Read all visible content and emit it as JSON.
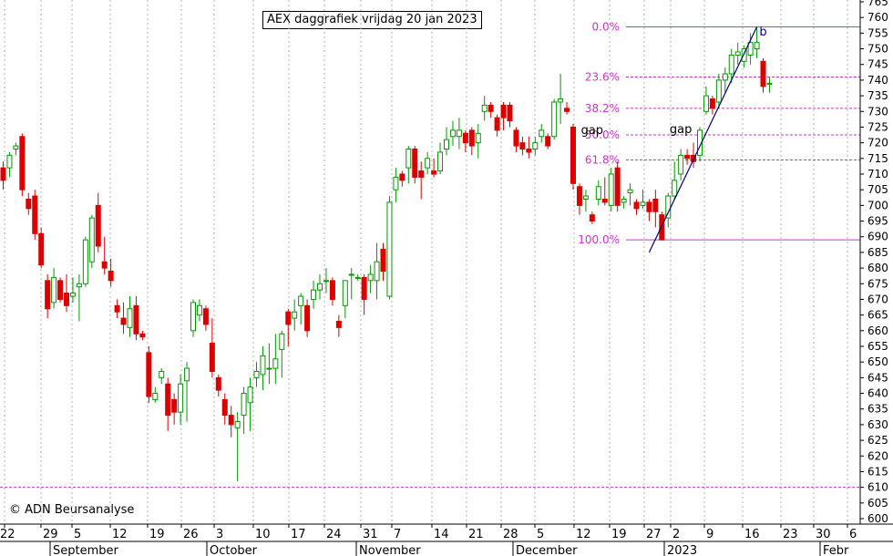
{
  "title": "AEX daggrafiek vrijdag 20 jan 2023",
  "copyright": "© ADN Beursanalyse",
  "chart_data": {
    "type": "candlestick",
    "title": "AEX daggrafiek vrijdag 20 jan 2023",
    "y_axis": {
      "min": 600,
      "max": 765,
      "step": 5,
      "position": "right"
    },
    "x_day_labels": [
      "22",
      "29",
      "5",
      "12",
      "19",
      "26",
      "3",
      "10",
      "17",
      "24",
      "31",
      "7",
      "14",
      "21",
      "28",
      "5",
      "12",
      "19",
      "27",
      "2",
      "9",
      "16",
      "23",
      "30",
      "6"
    ],
    "x_month_labels": [
      "September",
      "October",
      "November",
      "December",
      "2023",
      "Febr"
    ],
    "grid": true,
    "fib_levels": [
      {
        "label": "0.0%",
        "value": 757
      },
      {
        "label": "23.6%",
        "value": 741
      },
      {
        "label": "38.2%",
        "value": 731
      },
      {
        "label": "50.0%",
        "value": 722.5
      },
      {
        "label": "61.8%",
        "value": 714.5
      },
      {
        "label": "100.0%",
        "value": 689
      }
    ],
    "support_line": {
      "value": 610
    },
    "annotations": [
      {
        "text": "gap",
        "date_index": 93
      },
      {
        "text": "gap",
        "date_index": 107
      },
      {
        "text": "b",
        "date_index": 120
      }
    ],
    "trendline": {
      "from": {
        "index": 102,
        "value": 685
      },
      "to": {
        "index": 119,
        "value": 757
      }
    },
    "candles": [
      {
        "o": 712,
        "h": 714,
        "l": 705,
        "c": 708
      },
      {
        "o": 712,
        "h": 717,
        "l": 709,
        "c": 716
      },
      {
        "o": 718,
        "h": 720,
        "l": 716,
        "c": 719
      },
      {
        "o": 722,
        "h": 723,
        "l": 703,
        "c": 705
      },
      {
        "o": 702,
        "h": 704,
        "l": 697,
        "c": 699
      },
      {
        "o": 703,
        "h": 705,
        "l": 689,
        "c": 691
      },
      {
        "o": 691,
        "h": 693,
        "l": 680,
        "c": 681
      },
      {
        "o": 676,
        "h": 678,
        "l": 664,
        "c": 667
      },
      {
        "o": 669,
        "h": 680,
        "l": 667,
        "c": 677
      },
      {
        "o": 676,
        "h": 677,
        "l": 669,
        "c": 670
      },
      {
        "o": 672,
        "h": 678,
        "l": 666,
        "c": 668
      },
      {
        "o": 671,
        "h": 677,
        "l": 669,
        "c": 672
      },
      {
        "o": 674,
        "h": 678,
        "l": 663,
        "c": 675
      },
      {
        "o": 675,
        "h": 690,
        "l": 674,
        "c": 689
      },
      {
        "o": 682,
        "h": 697,
        "l": 680,
        "c": 696
      },
      {
        "o": 700,
        "h": 704,
        "l": 685,
        "c": 687
      },
      {
        "o": 682,
        "h": 690,
        "l": 678,
        "c": 680
      },
      {
        "o": 679,
        "h": 683,
        "l": 674,
        "c": 676
      },
      {
        "o": 668,
        "h": 670,
        "l": 664,
        "c": 666
      },
      {
        "o": 664,
        "h": 669,
        "l": 659,
        "c": 662
      },
      {
        "o": 661,
        "h": 671,
        "l": 658,
        "c": 667
      },
      {
        "o": 668,
        "h": 671,
        "l": 657,
        "c": 659
      },
      {
        "o": 659,
        "h": 660,
        "l": 657,
        "c": 658
      },
      {
        "o": 653,
        "h": 655,
        "l": 637,
        "c": 639
      },
      {
        "o": 638,
        "h": 642,
        "l": 637,
        "c": 640
      },
      {
        "o": 645,
        "h": 648,
        "l": 643,
        "c": 647
      },
      {
        "o": 643,
        "h": 645,
        "l": 628,
        "c": 633
      },
      {
        "o": 638,
        "h": 640,
        "l": 630,
        "c": 634
      },
      {
        "o": 634,
        "h": 646,
        "l": 630,
        "c": 643
      },
      {
        "o": 644,
        "h": 650,
        "l": 631,
        "c": 648
      },
      {
        "o": 660,
        "h": 670,
        "l": 658,
        "c": 669
      },
      {
        "o": 665,
        "h": 670,
        "l": 663,
        "c": 668
      },
      {
        "o": 667,
        "h": 668,
        "l": 660,
        "c": 662
      },
      {
        "o": 656,
        "h": 664,
        "l": 645,
        "c": 647
      },
      {
        "o": 645,
        "h": 646,
        "l": 639,
        "c": 641
      },
      {
        "o": 638,
        "h": 640,
        "l": 630,
        "c": 633
      },
      {
        "o": 633,
        "h": 636,
        "l": 626,
        "c": 630
      },
      {
        "o": 629,
        "h": 634,
        "l": 612,
        "c": 631
      },
      {
        "o": 633,
        "h": 642,
        "l": 627,
        "c": 640
      },
      {
        "o": 637,
        "h": 645,
        "l": 628,
        "c": 642
      },
      {
        "o": 645,
        "h": 650,
        "l": 642,
        "c": 647
      },
      {
        "o": 646,
        "h": 655,
        "l": 641,
        "c": 652
      },
      {
        "o": 648,
        "h": 656,
        "l": 643,
        "c": 648
      },
      {
        "o": 648,
        "h": 659,
        "l": 643,
        "c": 651
      },
      {
        "o": 654,
        "h": 660,
        "l": 645,
        "c": 659
      },
      {
        "o": 666,
        "h": 667,
        "l": 655,
        "c": 662
      },
      {
        "o": 664,
        "h": 670,
        "l": 660,
        "c": 666
      },
      {
        "o": 668,
        "h": 672,
        "l": 662,
        "c": 671
      },
      {
        "o": 668,
        "h": 670,
        "l": 658,
        "c": 660
      },
      {
        "o": 670,
        "h": 676,
        "l": 667,
        "c": 673
      },
      {
        "o": 673,
        "h": 678,
        "l": 670,
        "c": 675
      },
      {
        "o": 676,
        "h": 680,
        "l": 672,
        "c": 676
      },
      {
        "o": 676,
        "h": 677,
        "l": 668,
        "c": 670
      },
      {
        "o": 663,
        "h": 665,
        "l": 658,
        "c": 661
      },
      {
        "o": 668,
        "h": 676,
        "l": 664,
        "c": 676
      },
      {
        "o": 678,
        "h": 680,
        "l": 670,
        "c": 678
      },
      {
        "o": 677,
        "h": 678,
        "l": 676,
        "c": 677
      },
      {
        "o": 677,
        "h": 678,
        "l": 665,
        "c": 670
      },
      {
        "o": 676,
        "h": 681,
        "l": 672,
        "c": 678
      },
      {
        "o": 676,
        "h": 688,
        "l": 670,
        "c": 682
      },
      {
        "o": 686,
        "h": 688,
        "l": 676,
        "c": 679
      },
      {
        "o": 671,
        "h": 703,
        "l": 670,
        "c": 701
      },
      {
        "o": 705,
        "h": 712,
        "l": 701,
        "c": 709
      },
      {
        "o": 710,
        "h": 711,
        "l": 706,
        "c": 708
      },
      {
        "o": 712,
        "h": 719,
        "l": 707,
        "c": 718
      },
      {
        "o": 718,
        "h": 719,
        "l": 707,
        "c": 709
      },
      {
        "o": 711,
        "h": 714,
        "l": 702,
        "c": 709
      },
      {
        "o": 712,
        "h": 717,
        "l": 710,
        "c": 715
      },
      {
        "o": 711,
        "h": 715,
        "l": 709,
        "c": 710
      },
      {
        "o": 711,
        "h": 720,
        "l": 710,
        "c": 717
      },
      {
        "o": 718,
        "h": 725,
        "l": 716,
        "c": 721
      },
      {
        "o": 722,
        "h": 727,
        "l": 719,
        "c": 724
      },
      {
        "o": 722,
        "h": 728,
        "l": 718,
        "c": 724
      },
      {
        "o": 723,
        "h": 724,
        "l": 717,
        "c": 720
      },
      {
        "o": 724,
        "h": 725,
        "l": 716,
        "c": 719
      },
      {
        "o": 720,
        "h": 726,
        "l": 715,
        "c": 723
      },
      {
        "o": 730,
        "h": 735,
        "l": 727,
        "c": 732
      },
      {
        "o": 732,
        "h": 733,
        "l": 728,
        "c": 730
      },
      {
        "o": 728,
        "h": 729,
        "l": 722,
        "c": 724
      },
      {
        "o": 732,
        "h": 733,
        "l": 724,
        "c": 728
      },
      {
        "o": 732,
        "h": 733,
        "l": 725,
        "c": 727
      },
      {
        "o": 724,
        "h": 725,
        "l": 717,
        "c": 719
      },
      {
        "o": 720,
        "h": 722,
        "l": 716,
        "c": 718
      },
      {
        "o": 718,
        "h": 722,
        "l": 715,
        "c": 717
      },
      {
        "o": 718,
        "h": 722,
        "l": 716,
        "c": 720
      },
      {
        "o": 722,
        "h": 726,
        "l": 720,
        "c": 724
      },
      {
        "o": 722,
        "h": 723,
        "l": 718,
        "c": 719
      },
      {
        "o": 722,
        "h": 734,
        "l": 721,
        "c": 733
      },
      {
        "o": 733,
        "h": 742,
        "l": 726,
        "c": 734
      },
      {
        "o": 731,
        "h": 733,
        "l": 729,
        "c": 730
      },
      {
        "o": 725,
        "h": 726,
        "l": 705,
        "c": 707
      },
      {
        "o": 706,
        "h": 707,
        "l": 697,
        "c": 700
      },
      {
        "o": 702,
        "h": 705,
        "l": 698,
        "c": 703
      },
      {
        "o": 697,
        "h": 698,
        "l": 694,
        "c": 695
      },
      {
        "o": 702,
        "h": 708,
        "l": 700,
        "c": 706
      },
      {
        "o": 702,
        "h": 709,
        "l": 700,
        "c": 701
      },
      {
        "o": 700,
        "h": 712,
        "l": 698,
        "c": 710
      },
      {
        "o": 712,
        "h": 714,
        "l": 698,
        "c": 700
      },
      {
        "o": 701,
        "h": 703,
        "l": 699,
        "c": 702
      },
      {
        "o": 704,
        "h": 707,
        "l": 700,
        "c": 705
      },
      {
        "o": 701,
        "h": 702,
        "l": 697,
        "c": 699
      },
      {
        "o": 700,
        "h": 705,
        "l": 699,
        "c": 701
      },
      {
        "o": 701,
        "h": 702,
        "l": 695,
        "c": 698
      },
      {
        "o": 702,
        "h": 705,
        "l": 693,
        "c": 698
      },
      {
        "o": 697,
        "h": 698,
        "l": 689,
        "c": 689
      },
      {
        "o": 696,
        "h": 704,
        "l": 693,
        "c": 703
      },
      {
        "o": 703,
        "h": 714,
        "l": 702,
        "c": 708
      },
      {
        "o": 710,
        "h": 718,
        "l": 708,
        "c": 716
      },
      {
        "o": 716,
        "h": 718,
        "l": 713,
        "c": 715
      },
      {
        "o": 716,
        "h": 720,
        "l": 712,
        "c": 714
      },
      {
        "o": 716,
        "h": 725,
        "l": 714,
        "c": 724
      },
      {
        "o": 730,
        "h": 738,
        "l": 729,
        "c": 735
      },
      {
        "o": 734,
        "h": 735,
        "l": 729,
        "c": 731
      },
      {
        "o": 733,
        "h": 742,
        "l": 731,
        "c": 740
      },
      {
        "o": 740,
        "h": 744,
        "l": 736,
        "c": 742
      },
      {
        "o": 742,
        "h": 750,
        "l": 739,
        "c": 748
      },
      {
        "o": 748,
        "h": 752,
        "l": 745,
        "c": 749
      },
      {
        "o": 746,
        "h": 751,
        "l": 744,
        "c": 750
      },
      {
        "o": 748,
        "h": 755,
        "l": 745,
        "c": 752
      },
      {
        "o": 750,
        "h": 757,
        "l": 747,
        "c": 752
      },
      {
        "o": 746,
        "h": 747,
        "l": 736,
        "c": 738
      },
      {
        "o": 739,
        "h": 741,
        "l": 736,
        "c": 739
      }
    ]
  }
}
